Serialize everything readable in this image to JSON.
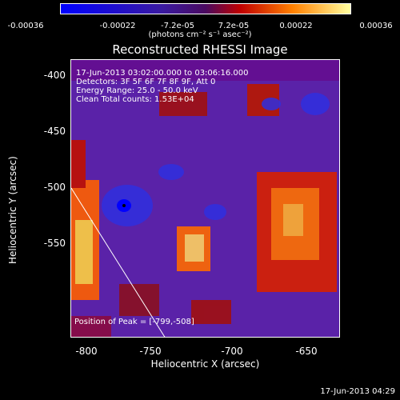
{
  "colorbar": {
    "ticks": [
      "-0.00036",
      "-0.00022",
      "-7.2e-05",
      "7.2e-05",
      "0.00022",
      "0.00036"
    ],
    "units": "(photons cm⁻² s⁻¹ asec⁻²)"
  },
  "title": "Reconstructed RHESSI Image",
  "info": {
    "line1": "17-Jun-2013 03:02:00.000 to 03:06:16.000",
    "line2": "Detectors: 3F 5F 6F 7F 8F 9F, Att 0",
    "line3": "Energy Range: 25.0 - 50.0 keV",
    "line4": "Clean     Total counts: 1.53E+04"
  },
  "peak_text": "Position of Peak = [-799,-508]",
  "axes": {
    "xlabel": "Heliocentric X (arcsec)",
    "ylabel": "Heliocentric Y (arcsec)",
    "xticks": [
      "-800",
      "-750",
      "-700",
      "-650"
    ],
    "yticks": [
      "-400",
      "-450",
      "-500",
      "-550"
    ]
  },
  "timestamp": "17-Jun-2013 04:29",
  "colors": {
    "background": "#000000",
    "map_base": "#5a22a8",
    "text": "#ffffff"
  }
}
